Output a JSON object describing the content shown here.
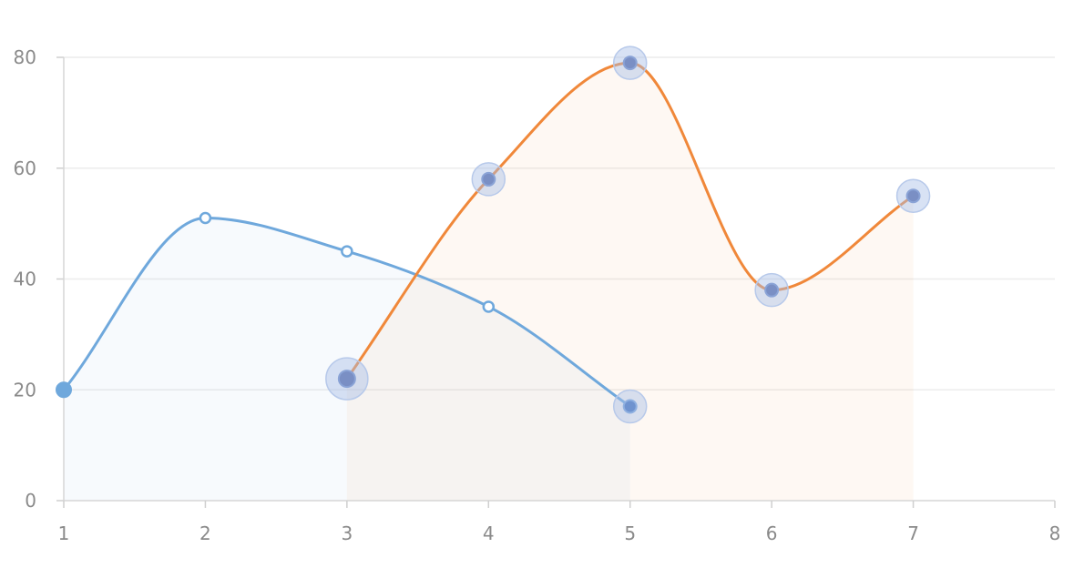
{
  "chart_data": {
    "type": "line",
    "title": "",
    "xlabel": "",
    "ylabel": "",
    "xlim": [
      1,
      8
    ],
    "ylim": [
      0,
      80
    ],
    "x_ticks": [
      "1",
      "2",
      "3",
      "4",
      "5",
      "6",
      "7",
      "8"
    ],
    "y_ticks": [
      "0",
      "20",
      "40",
      "60",
      "80"
    ],
    "grid": true,
    "legend": "none",
    "smooth": true,
    "area_fill": true,
    "series": [
      {
        "color": "#6fa8dc",
        "points": [
          {
            "x": 1,
            "y": 20
          },
          {
            "x": 2,
            "y": 51
          },
          {
            "x": 3,
            "y": 45
          },
          {
            "x": 4,
            "y": 35
          },
          {
            "x": 5,
            "y": 17
          }
        ]
      },
      {
        "color": "#f0883a",
        "points": [
          {
            "x": 3,
            "y": 22
          },
          {
            "x": 4,
            "y": 58
          },
          {
            "x": 5,
            "y": 79
          },
          {
            "x": 6,
            "y": 38
          },
          {
            "x": 7,
            "y": 55
          }
        ]
      }
    ]
  }
}
